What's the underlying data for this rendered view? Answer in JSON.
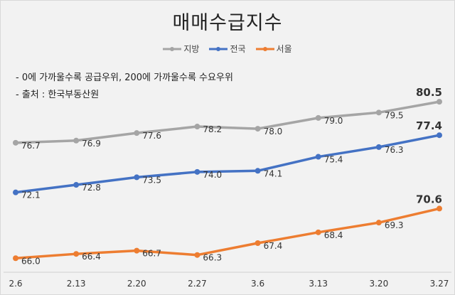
{
  "chart_data": {
    "type": "line",
    "title": "매매수급지수",
    "notes": [
      "- 0에 가까울수록 공급우위, 200에 가까울수록 수요우위",
      "- 출처 : 한국부동산원"
    ],
    "categories": [
      "2.6",
      "2.13",
      "2.20",
      "2.27",
      "3.6",
      "3.13",
      "3.20",
      "3.27"
    ],
    "series": [
      {
        "name": "지방",
        "color": "#a5a5a5",
        "values": [
          76.7,
          76.9,
          77.6,
          78.2,
          78.0,
          79.0,
          79.5,
          80.5
        ]
      },
      {
        "name": "전국",
        "color": "#4472c4",
        "values": [
          72.1,
          72.8,
          73.5,
          74.0,
          74.1,
          75.4,
          76.3,
          77.4
        ]
      },
      {
        "name": "서울",
        "color": "#ed7d31",
        "values": [
          66.0,
          66.4,
          66.7,
          66.3,
          67.4,
          68.4,
          69.3,
          70.6
        ]
      }
    ],
    "xlabel": "",
    "ylabel": "",
    "ylim": [
      64.7,
      84
    ],
    "grid": false,
    "legend_position": "top-center"
  }
}
